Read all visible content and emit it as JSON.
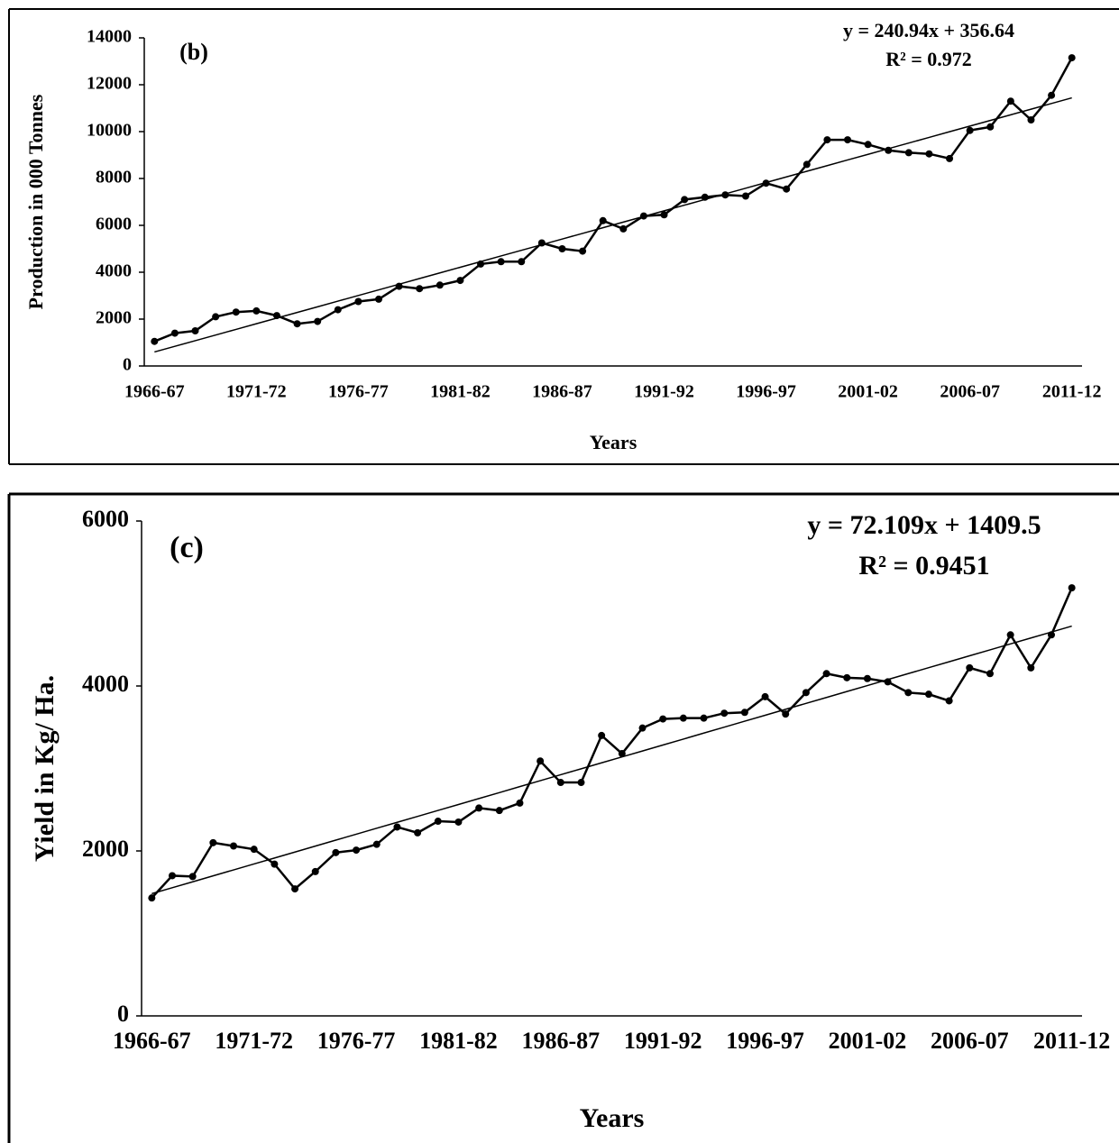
{
  "chart_data": [
    {
      "type": "line",
      "panel_label": "(b)",
      "equation": "y = 240.94x + 356.64",
      "r_squared": "R² = 0.972",
      "x_label": "Years",
      "y_label": "Production in 000 Tonnes",
      "categories": [
        "1966-67",
        null,
        null,
        null,
        null,
        "1971-72",
        null,
        null,
        null,
        null,
        "1976-77",
        null,
        null,
        null,
        null,
        "1981-82",
        null,
        null,
        null,
        null,
        "1986-87",
        null,
        null,
        null,
        null,
        "1991-92",
        null,
        null,
        null,
        null,
        "1996-97",
        null,
        null,
        null,
        null,
        "2001-02",
        null,
        null,
        null,
        null,
        "2006-07",
        null,
        null,
        null,
        null,
        "2011-12"
      ],
      "series": [
        {
          "color": "#000000",
          "markers": true,
          "values": [
            1050,
            1400,
            1500,
            2100,
            2300,
            2350,
            2150,
            1800,
            1900,
            2400,
            2750,
            2850,
            3400,
            3300,
            3450,
            3650,
            4350,
            4450,
            4450,
            5250,
            5000,
            4900,
            6200,
            5850,
            6400,
            6450,
            7100,
            7200,
            7300,
            7250,
            7800,
            7550,
            8600,
            9650,
            9650,
            9450,
            9200,
            9100,
            9050,
            8850,
            10050,
            10200,
            11300,
            10500,
            11550,
            13150
          ]
        },
        {
          "color": "#000000",
          "markers": false,
          "values": [
            598,
            839,
            1079,
            1320,
            1561,
            1802,
            2043,
            2284,
            2525,
            2766,
            3007,
            3248,
            3489,
            3730,
            3971,
            4212,
            4453,
            4694,
            4935,
            5175,
            5416,
            5657,
            5898,
            6139,
            6380,
            6621,
            6862,
            7103,
            7344,
            7585,
            7826,
            8067,
            8308,
            8549,
            8790,
            9030,
            9271,
            9512,
            9753,
            9994,
            10235,
            10476,
            10717,
            10958,
            11199,
            11440
          ]
        }
      ],
      "ylim": [
        0,
        14000
      ],
      "yticks": [
        0,
        2000,
        4000,
        6000,
        8000,
        10000,
        12000,
        14000
      ]
    },
    {
      "type": "line",
      "panel_label": "(c)",
      "equation": "y = 72.109x + 1409.5",
      "r_squared": "R² = 0.9451",
      "x_label": "Years",
      "y_label": "Yield in Kg/ Ha.",
      "categories": [
        "1966-67",
        null,
        null,
        null,
        null,
        "1971-72",
        null,
        null,
        null,
        null,
        "1976-77",
        null,
        null,
        null,
        null,
        "1981-82",
        null,
        null,
        null,
        null,
        "1986-87",
        null,
        null,
        null,
        null,
        "1991-92",
        null,
        null,
        null,
        null,
        "1996-97",
        null,
        null,
        null,
        null,
        "2001-02",
        null,
        null,
        null,
        null,
        "2006-07",
        null,
        null,
        null,
        null,
        "2011-12"
      ],
      "series": [
        {
          "color": "#000000",
          "markers": true,
          "values": [
            1430,
            1700,
            1690,
            2100,
            2060,
            2020,
            1840,
            1540,
            1750,
            1980,
            2010,
            2080,
            2290,
            2220,
            2360,
            2350,
            2520,
            2490,
            2580,
            3090,
            2830,
            2830,
            3400,
            3180,
            3490,
            3600,
            3610,
            3610,
            3670,
            3680,
            3870,
            3660,
            3920,
            4150,
            4100,
            4090,
            4050,
            3920,
            3900,
            3820,
            4220,
            4150,
            4620,
            4220,
            4620,
            5190
          ]
        },
        {
          "color": "#000000",
          "markers": false,
          "values": [
            1482,
            1554,
            1626,
            1698,
            1770,
            1842,
            1914,
            1986,
            2059,
            2131,
            2203,
            2275,
            2347,
            2419,
            2491,
            2563,
            2635,
            2707,
            2780,
            2852,
            2924,
            2996,
            3068,
            3140,
            3212,
            3284,
            3356,
            3429,
            3501,
            3573,
            3645,
            3717,
            3789,
            3861,
            3933,
            4005,
            4078,
            4150,
            4222,
            4294,
            4366,
            4438,
            4510,
            4582,
            4654,
            4726
          ]
        }
      ],
      "ylim": [
        0,
        6000
      ],
      "yticks": [
        0,
        2000,
        4000,
        6000
      ]
    }
  ]
}
